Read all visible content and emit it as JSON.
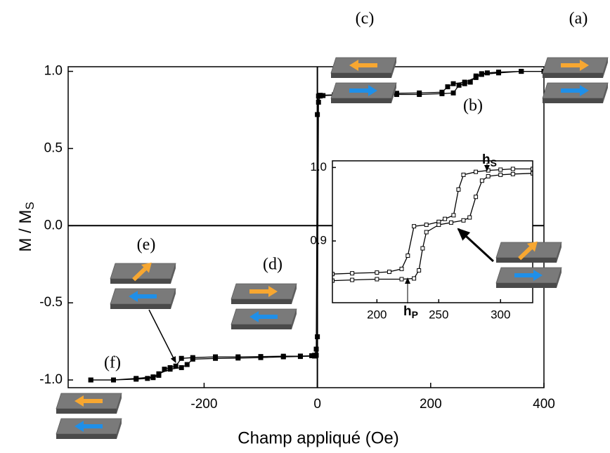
{
  "chart_data": [
    {
      "type": "line",
      "xlabel": "Champ appliqué (Oe)",
      "ylabel": "M / M",
      "ylabel_sub": "S",
      "xlim": [
        -440,
        400
      ],
      "ylim": [
        -1.05,
        1.03
      ],
      "xticks": [
        -200,
        0,
        200,
        400
      ],
      "yticks": [
        {
          "value": 1.0,
          "label": "1.0"
        },
        {
          "value": 0.5,
          "label": "0.5"
        },
        {
          "value": 0.0,
          "label": "0.0"
        },
        {
          "value": -0.5,
          "label": "-0.5"
        },
        {
          "value": -1.0,
          "label": "-1.0"
        }
      ],
      "marker_fill": "#000000",
      "annotations": [
        "(a)",
        "(b)",
        "(c)",
        "(d)",
        "(e)",
        "(f)"
      ],
      "series": [
        {
          "color": "#000000",
          "x": [
            400,
            360,
            320,
            300,
            290,
            280,
            270,
            260,
            250,
            240,
            220,
            180,
            140,
            100,
            60,
            30,
            10,
            5,
            2,
            0,
            -2,
            -5,
            -30,
            -60,
            -100,
            -140,
            -180,
            -220,
            -230,
            -240,
            -260,
            -280,
            -290,
            -320,
            -360,
            -400
          ],
          "values": [
            1.0,
            1.0,
            0.995,
            0.99,
            0.985,
            0.97,
            0.93,
            0.92,
            0.91,
            0.86,
            0.855,
            0.85,
            0.85,
            0.848,
            0.846,
            0.845,
            0.843,
            0.84,
            0.8,
            -0.72,
            -0.84,
            -0.845,
            -0.848,
            -0.85,
            -0.855,
            -0.858,
            -0.86,
            -0.865,
            -0.9,
            -0.92,
            -0.93,
            -0.96,
            -0.98,
            -0.99,
            -1.0,
            -1.0
          ]
        },
        {
          "color": "#000000",
          "x": [
            -400,
            -360,
            -320,
            -300,
            -290,
            -280,
            -270,
            -260,
            -250,
            -240,
            -220,
            -180,
            -140,
            -100,
            -60,
            -30,
            -10,
            -5,
            -2,
            0,
            2,
            5,
            30,
            60,
            100,
            140,
            180,
            220,
            230,
            240,
            260,
            280,
            290,
            320,
            360,
            400
          ],
          "values": [
            -1.0,
            -1.0,
            -0.995,
            -0.99,
            -0.985,
            -0.97,
            -0.93,
            -0.92,
            -0.91,
            -0.86,
            -0.855,
            -0.85,
            -0.85,
            -0.848,
            -0.846,
            -0.845,
            -0.843,
            -0.84,
            -0.8,
            0.72,
            0.84,
            0.845,
            0.848,
            0.85,
            0.855,
            0.858,
            0.86,
            0.865,
            0.9,
            0.92,
            0.93,
            0.96,
            0.98,
            0.99,
            1.0,
            1.0
          ]
        }
      ]
    },
    {
      "type": "line",
      "xlim": [
        164,
        326
      ],
      "ylim": [
        0.816,
        1.009
      ],
      "xticks": [
        200,
        250,
        300
      ],
      "yticks": [
        {
          "value": 1.0,
          "label": "1.0"
        },
        {
          "value": 0.9,
          "label": "0.9"
        }
      ],
      "marker_fill": "#ffffff",
      "annotations": [
        {
          "text": "h",
          "sub": "S"
        },
        {
          "text": "h",
          "sub": "P"
        }
      ],
      "series": [
        {
          "color": "#000000",
          "x": [
            164,
            180,
            200,
            210,
            220,
            225,
            230,
            240,
            250,
            255,
            262,
            266,
            270,
            280,
            290,
            300,
            310,
            326
          ],
          "values": [
            0.855,
            0.856,
            0.857,
            0.858,
            0.862,
            0.88,
            0.92,
            0.922,
            0.926,
            0.93,
            0.935,
            0.97,
            0.99,
            0.994,
            0.996,
            0.997,
            0.998,
            0.998
          ]
        },
        {
          "color": "#000000",
          "x": [
            164,
            180,
            200,
            220,
            230,
            234,
            237,
            240,
            250,
            260,
            270,
            275,
            280,
            285,
            290,
            300,
            310,
            326
          ],
          "values": [
            0.846,
            0.847,
            0.848,
            0.848,
            0.849,
            0.86,
            0.89,
            0.912,
            0.922,
            0.925,
            0.928,
            0.932,
            0.96,
            0.982,
            0.988,
            0.99,
            0.991,
            0.992
          ]
        }
      ]
    }
  ]
}
